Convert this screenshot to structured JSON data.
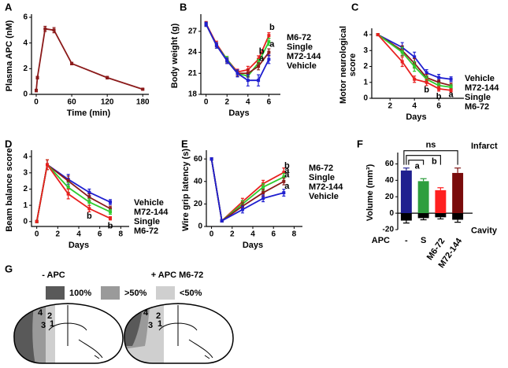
{
  "chart_data": [
    {
      "type": "line",
      "panel": "A",
      "xlabel": "Time (min)",
      "ylabel": "Plasma APC (nM)",
      "x": [
        0,
        2,
        15,
        30,
        60,
        120,
        180
      ],
      "xlim": [
        -8,
        185
      ],
      "ylim": [
        0,
        6
      ],
      "xticks": [
        0,
        60,
        120,
        180
      ],
      "yticks": [
        0,
        2,
        4,
        6
      ],
      "series": [
        {
          "color": "#8b1a1a",
          "values": [
            0.3,
            1.3,
            5.1,
            5.0,
            2.4,
            1.3,
            0.4
          ],
          "errors": [
            0.1,
            0.1,
            0.2,
            0.2,
            0.1,
            0.1,
            0.05
          ]
        }
      ]
    },
    {
      "type": "line",
      "panel": "B",
      "xlabel": "Days",
      "ylabel": "Body weight (g)",
      "x": [
        0,
        1,
        2,
        3,
        4,
        5,
        6
      ],
      "xlim": [
        -0.5,
        6.8
      ],
      "ylim": [
        18,
        29
      ],
      "xticks": [
        0,
        2,
        4,
        6
      ],
      "yticks": [
        18,
        21,
        24,
        27
      ],
      "series": [
        {
          "name": "M6-72",
          "color": "#e8201f",
          "values": [
            28.1,
            25.2,
            23.0,
            21.2,
            21.5,
            23.0,
            26.4
          ],
          "errors": [
            0.3,
            0.4,
            0.4,
            0.4,
            0.5,
            0.5,
            0.4
          ]
        },
        {
          "name": "Single",
          "color": "#2ecc2e",
          "values": [
            28.0,
            25.0,
            23.0,
            21.0,
            20.6,
            22.5,
            25.5
          ],
          "errors": [
            0.3,
            0.4,
            0.4,
            0.4,
            0.5,
            0.5,
            0.5
          ]
        },
        {
          "name": "M72-144",
          "color": "#8b1a1a",
          "values": [
            28.0,
            25.0,
            22.8,
            21.0,
            21.0,
            22.0,
            24.0
          ],
          "errors": [
            0.3,
            0.4,
            0.4,
            0.4,
            0.5,
            0.5,
            0.5
          ]
        },
        {
          "name": "Vehicle",
          "color": "#1f1fd0",
          "values": [
            28.0,
            25.0,
            22.8,
            21.0,
            20.0,
            20.0,
            23.0
          ],
          "errors": [
            0.3,
            0.4,
            0.4,
            0.5,
            0.8,
            0.8,
            0.6
          ]
        }
      ],
      "annotations": [
        {
          "text": "b",
          "x": 5,
          "series": "M6-72"
        },
        {
          "text": "a",
          "x": 5,
          "series": "M72-144"
        },
        {
          "text": "b",
          "x": 6,
          "series": "M6-72"
        },
        {
          "text": "a",
          "x": 6,
          "series": "M72-144"
        }
      ]
    },
    {
      "type": "line",
      "panel": "C",
      "xlabel": "Days",
      "ylabel": [
        "Motor neurological",
        "score"
      ],
      "x": [
        1,
        3,
        4,
        5,
        6,
        7
      ],
      "xlim": [
        0.5,
        7.8
      ],
      "ylim": [
        0,
        4.2
      ],
      "xticks": [
        2,
        4,
        6
      ],
      "yticks": [
        0,
        1,
        2,
        3,
        4
      ],
      "series": [
        {
          "name": "Vehicle",
          "color": "#1f1fd0",
          "values": [
            4,
            3.2,
            2.6,
            1.6,
            1.3,
            1.2
          ],
          "errors": [
            0.05,
            0.3,
            0.3,
            0.2,
            0.2,
            0.15
          ]
        },
        {
          "name": "M72-144",
          "color": "#8b1a1a",
          "values": [
            4,
            3.0,
            2.2,
            1.3,
            1.0,
            0.8
          ],
          "errors": [
            0.05,
            0.3,
            0.3,
            0.2,
            0.15,
            0.15
          ]
        },
        {
          "name": "Single",
          "color": "#2ecc2e",
          "values": [
            4,
            2.9,
            2.0,
            1.2,
            0.8,
            0.7
          ],
          "errors": [
            0.05,
            0.3,
            0.3,
            0.2,
            0.15,
            0.15
          ]
        },
        {
          "name": "M6-72",
          "color": "#e8201f",
          "values": [
            4,
            2.3,
            1.2,
            1.0,
            0.6,
            0.5
          ],
          "errors": [
            0.05,
            0.3,
            0.2,
            0.2,
            0.15,
            0.1
          ]
        }
      ],
      "annotations": [
        {
          "text": "b",
          "x": 5,
          "series": "M6-72"
        },
        {
          "text": "b",
          "x": 6,
          "series": "M6-72"
        },
        {
          "text": "a",
          "x": 7,
          "series": "Single"
        }
      ]
    },
    {
      "type": "line",
      "panel": "D",
      "xlabel": "Days",
      "ylabel": "Beam balance score",
      "x": [
        0,
        1,
        3,
        5,
        7
      ],
      "xlim": [
        -0.5,
        8.5
      ],
      "ylim": [
        -0.3,
        4.2
      ],
      "xticks": [
        0,
        2,
        4,
        6,
        8
      ],
      "yticks": [
        0,
        1,
        2,
        3,
        4
      ],
      "series": [
        {
          "name": "Vehicle",
          "color": "#1f1fd0",
          "values": [
            0,
            3.5,
            2.6,
            1.8,
            1.2
          ],
          "errors": [
            0.05,
            0.3,
            0.3,
            0.2,
            0.15
          ]
        },
        {
          "name": "M72-144",
          "color": "#8b1a1a",
          "values": [
            0,
            3.5,
            2.5,
            1.5,
            0.8
          ],
          "errors": [
            0.05,
            0.3,
            0.3,
            0.2,
            0.15
          ]
        },
        {
          "name": "Single",
          "color": "#2ecc2e",
          "values": [
            0,
            3.5,
            2.1,
            1.2,
            0.6
          ],
          "errors": [
            0.05,
            0.3,
            0.3,
            0.2,
            0.15
          ]
        },
        {
          "name": "M6-72",
          "color": "#e8201f",
          "values": [
            0,
            3.5,
            1.7,
            0.8,
            0.2
          ],
          "errors": [
            0.05,
            0.3,
            0.3,
            0.2,
            0.1
          ]
        }
      ],
      "annotations": [
        {
          "text": "b",
          "x": 5,
          "series": "M6-72"
        },
        {
          "text": "b",
          "x": 7,
          "series": "M6-72"
        }
      ]
    },
    {
      "type": "line",
      "panel": "E",
      "xlabel": "Days",
      "ylabel": "Wire grip latency (s)",
      "x": [
        0,
        1,
        3,
        5,
        7
      ],
      "xlim": [
        -0.5,
        8.5
      ],
      "ylim": [
        0,
        65
      ],
      "xticks": [
        0,
        2,
        4,
        6,
        8
      ],
      "yticks": [
        0,
        20,
        40,
        60
      ],
      "series": [
        {
          "name": "M6-72",
          "color": "#e8201f",
          "values": [
            60,
            5,
            22,
            38,
            48
          ],
          "errors": [
            1,
            1,
            3,
            3,
            4
          ]
        },
        {
          "name": "Single",
          "color": "#2ecc2e",
          "values": [
            60,
            5,
            20,
            35,
            44
          ],
          "errors": [
            1,
            1,
            3,
            3,
            3
          ]
        },
        {
          "name": "M72-144",
          "color": "#8b1a1a",
          "values": [
            60,
            5,
            18,
            30,
            40
          ],
          "errors": [
            1,
            1,
            3,
            3,
            3
          ]
        },
        {
          "name": "Vehicle",
          "color": "#1f1fd0",
          "values": [
            60,
            5,
            15,
            25,
            30
          ],
          "errors": [
            1,
            1,
            3,
            3,
            3
          ]
        }
      ],
      "annotations": [
        {
          "text": "b",
          "x": 7,
          "series": "M6-72"
        },
        {
          "text": "a",
          "x": 7,
          "series": "Single"
        },
        {
          "text": "a",
          "x": 7,
          "series": "M72-144"
        },
        {
          "text": "a",
          "x": 7,
          "series": "Vehicle"
        }
      ]
    },
    {
      "type": "bar",
      "panel": "F",
      "ylabel": "Volume (mm³)",
      "xlabel": "APC",
      "categories": [
        "-",
        "S",
        "M6-72",
        "M72-144"
      ],
      "ylim": [
        -20,
        70
      ],
      "yticks": [
        -20,
        0,
        20,
        40,
        60
      ],
      "series": [
        {
          "name": "Infarct",
          "colors": [
            "#1f1f8f",
            "#2e9e3e",
            "#ff2020",
            "#7a0c0c"
          ],
          "values": [
            52,
            39,
            28,
            49
          ],
          "errors": [
            3,
            3,
            3,
            6
          ]
        },
        {
          "name": "Cavity",
          "color": "#000000",
          "values": [
            -9,
            -6,
            -5,
            -8
          ],
          "errors": [
            3,
            2,
            2,
            3
          ]
        }
      ],
      "comparisons": [
        {
          "label": "ns",
          "from": "-",
          "to": "M72-144"
        },
        {
          "label": "a",
          "from": "-",
          "to": "S"
        },
        {
          "label": "b",
          "from": "-",
          "to": "M6-72"
        }
      ]
    }
  ],
  "diagram": {
    "panel": "G",
    "legend": [
      "100%",
      ">50%",
      "<50%"
    ],
    "groups": [
      {
        "title": "- APC",
        "regions": [
          "4",
          "2",
          "3",
          "1"
        ]
      },
      {
        "title": "+ APC M6-72",
        "regions": [
          "4",
          "2",
          "3",
          "1"
        ]
      }
    ]
  }
}
